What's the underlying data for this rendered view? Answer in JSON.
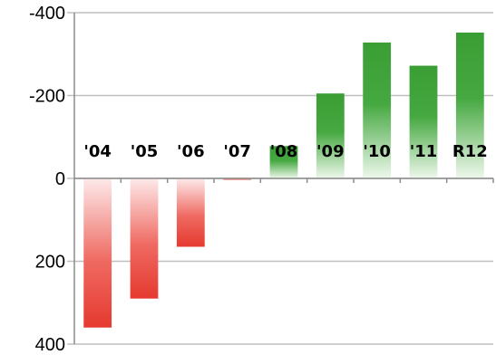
{
  "chart_data": {
    "type": "bar",
    "title": "",
    "xlabel": "",
    "ylabel": "",
    "categories": [
      "'04",
      "'05",
      "'06",
      "'07",
      "'08",
      "'09",
      "'10",
      "'11",
      "R12"
    ],
    "values": [
      360,
      290,
      165,
      2,
      -78,
      -205,
      -328,
      -272,
      -352
    ],
    "ylim": [
      400,
      -400
    ],
    "y_ticks": [
      {
        "value": -400,
        "label": "-400"
      },
      {
        "value": -200,
        "label": "-200"
      },
      {
        "value": 0,
        "label": "0"
      },
      {
        "value": 200,
        "label": "200"
      },
      {
        "value": 400,
        "label": "400"
      }
    ],
    "y_axis_inverted": true,
    "grid": true,
    "legend": "none",
    "colors": {
      "positive": "#e53a2f",
      "negative": "#3a9e35",
      "grid": "#bfbfbf",
      "axis": "#8c8c8c"
    }
  }
}
